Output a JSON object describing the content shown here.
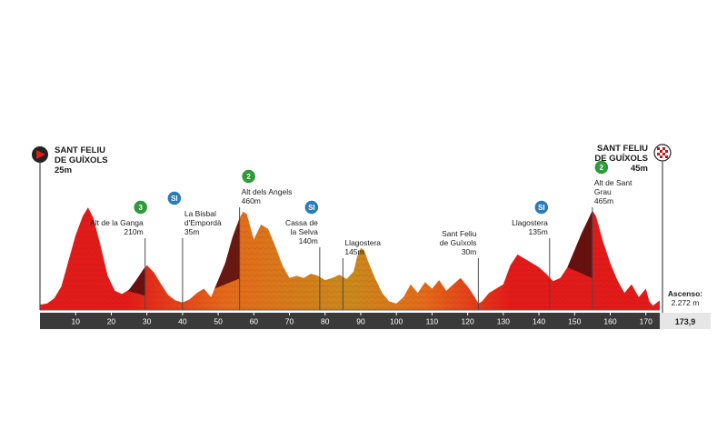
{
  "chart_data": {
    "type": "area",
    "title": "",
    "xlabel": "",
    "ylabel": "",
    "xlim": [
      0,
      173.9
    ],
    "x_ticks": [
      10,
      20,
      30,
      40,
      50,
      60,
      70,
      80,
      90,
      100,
      110,
      120,
      130,
      140,
      150,
      160,
      170
    ],
    "distance_total_label": "173,9",
    "ascent_title": "Ascenso:",
    "ascent_value": "2.272 m",
    "colors": {
      "low": "#e21a1a",
      "mid": "#e56a1a",
      "high": "#c98a1c",
      "climb": "#5a1010",
      "axis_bar": "#3a3a3a",
      "marker_line": "#4a4a4a",
      "cat2_badge": "#2e9a3a",
      "cat3_badge": "#2e9a3a",
      "sprint_badge": "#2a7ab8"
    },
    "profile": {
      "x": [
        0,
        2,
        4,
        6,
        8,
        10,
        12,
        13.5,
        15,
        17,
        19,
        21,
        23,
        25,
        27,
        29,
        30,
        32,
        34,
        36,
        38,
        40,
        42,
        44,
        46,
        48,
        50,
        52,
        54,
        56,
        57,
        58,
        60,
        62,
        64,
        66,
        68,
        70,
        72,
        74,
        76,
        78,
        80,
        82,
        84,
        86,
        88,
        89,
        90,
        91,
        92,
        94,
        96,
        98,
        100,
        102,
        104,
        106,
        108,
        110,
        112,
        114,
        116,
        118,
        120,
        122,
        123,
        124,
        126,
        128,
        130,
        132,
        134,
        136,
        138,
        140,
        142,
        144,
        146,
        148,
        150,
        152,
        154,
        155,
        156,
        158,
        160,
        162,
        164,
        166,
        168,
        170,
        171,
        172,
        173.9
      ],
      "y": [
        25,
        30,
        55,
        110,
        230,
        350,
        440,
        480,
        430,
        300,
        160,
        90,
        75,
        95,
        140,
        190,
        210,
        175,
        120,
        70,
        45,
        35,
        50,
        80,
        100,
        60,
        140,
        220,
        340,
        430,
        460,
        450,
        330,
        400,
        380,
        300,
        210,
        150,
        160,
        150,
        170,
        160,
        140,
        150,
        165,
        145,
        180,
        250,
        290,
        280,
        230,
        150,
        80,
        40,
        30,
        60,
        120,
        80,
        130,
        100,
        140,
        90,
        120,
        150,
        110,
        60,
        30,
        40,
        80,
        100,
        120,
        210,
        260,
        240,
        220,
        200,
        170,
        135,
        150,
        200,
        280,
        360,
        430,
        465,
        440,
        320,
        220,
        140,
        80,
        120,
        60,
        100,
        40,
        20,
        45
      ],
      "ylim": [
        0,
        600
      ]
    },
    "points": [
      {
        "km": 29.5,
        "elev": 210,
        "label": "Alt de la Ganga\n210m",
        "category": "3",
        "badge_kind": "cat3"
      },
      {
        "km": 40,
        "elev": 35,
        "label": "La Bisbal\nd'Empordà\n35m",
        "category": "SI",
        "badge_kind": "sprint"
      },
      {
        "km": 56,
        "elev": 460,
        "label": "Alt dels Angels\n460m",
        "category": "2",
        "badge_kind": "cat2"
      },
      {
        "km": 78.5,
        "elev": 140,
        "label": "Cassa de\nla Selva\n140m",
        "category": "SI",
        "badge_kind": "sprint"
      },
      {
        "km": 85,
        "elev": 145,
        "label": "Llagostera\n145m",
        "category": "",
        "badge_kind": "none"
      },
      {
        "km": 123,
        "elev": 30,
        "label": "Sant Feliu\nde Guíxols\n30m",
        "category": "",
        "badge_kind": "none"
      },
      {
        "km": 143,
        "elev": 135,
        "label": "Llagostera\n135m",
        "category": "SI",
        "badge_kind": "sprint"
      },
      {
        "km": 155,
        "elev": 465,
        "label": "Alt de Sant\nGrau\n465m",
        "category": "2",
        "badge_kind": "cat2"
      }
    ],
    "start": {
      "label": "SANT FELIU\nDE GUÍXOLS",
      "elev_label": "25m"
    },
    "finish": {
      "label": "SANT FELIU\nDE GUÍXOLS",
      "elev_label": "45m"
    }
  }
}
